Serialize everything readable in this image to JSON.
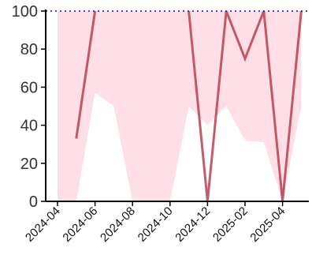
{
  "chart_data": {
    "type": "line",
    "title": "",
    "xlabel": "",
    "ylabel": "",
    "x": [
      "2024-04",
      "2024-05",
      "2024-06",
      "2024-07",
      "2024-08",
      "2024-09",
      "2024-10",
      "2024-11",
      "2024-12",
      "2025-01",
      "2025-02",
      "2025-03",
      "2025-04",
      "2025-05"
    ],
    "series": [
      {
        "name": "",
        "values": [
          null,
          33,
          100,
          null,
          null,
          null,
          null,
          100,
          0,
          100,
          75,
          100,
          0,
          100
        ]
      }
    ],
    "band": {
      "lower": [
        0,
        0,
        57,
        50,
        0,
        0,
        0,
        50,
        40,
        50,
        32,
        31,
        0,
        50
      ],
      "upper": [
        100,
        100,
        100,
        100,
        100,
        100,
        100,
        100,
        100,
        100,
        100,
        100,
        100,
        100
      ]
    },
    "reference_line": {
      "value": 100,
      "style": "dotted",
      "color": "#0000ff"
    },
    "yticks": [
      0,
      20,
      40,
      60,
      80,
      100
    ],
    "xticks": [
      "2024-04",
      "2024-06",
      "2024-08",
      "2024-10",
      "2024-12",
      "2025-02",
      "2025-04"
    ],
    "ylim": [
      0,
      100
    ],
    "xlim": [
      "2024-04",
      "2025-05"
    ],
    "grid": false,
    "legend": "none",
    "colors": {
      "line": "#b5334a",
      "band": "#ffdfe5",
      "reference": "#0000ff",
      "axis": "#000000"
    }
  }
}
